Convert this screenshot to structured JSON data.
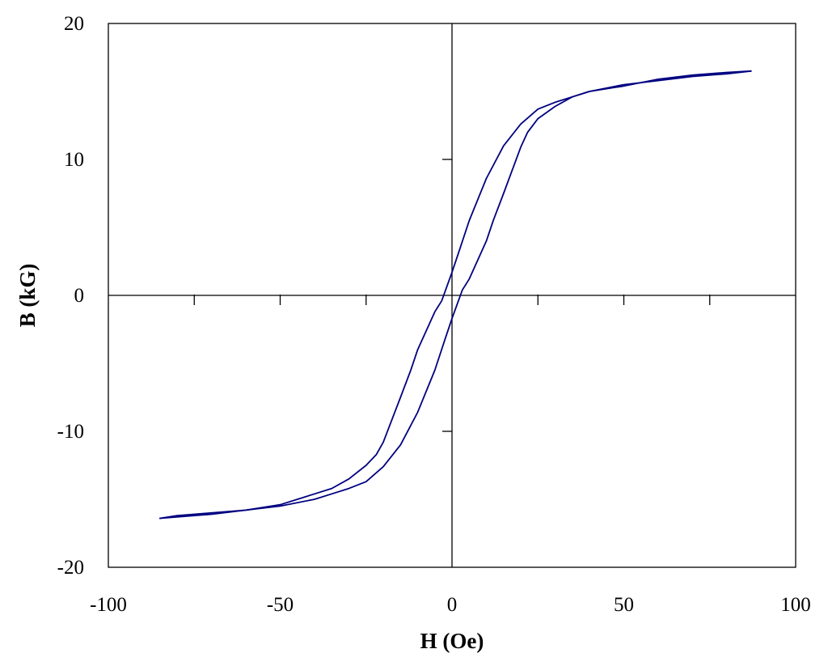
{
  "chart_data": {
    "type": "line",
    "title": "",
    "xlabel": "H (Oe)",
    "ylabel": "B (kG)",
    "xlim": [
      -100,
      100
    ],
    "ylim": [
      -20,
      20
    ],
    "x_ticks": [
      "-100",
      "-50",
      "0",
      "50",
      "100"
    ],
    "y_ticks": [
      "20",
      "10",
      "0",
      "-10",
      "-20"
    ],
    "grid": false,
    "legend": "none",
    "line_color": "#000080",
    "series": [
      {
        "x": [
          -85,
          -70,
          -60,
          -50,
          -45,
          -40,
          -35,
          -30,
          -25,
          -22,
          -20,
          -15,
          -12,
          -10,
          -5,
          -3,
          0,
          2,
          5,
          10,
          15,
          20,
          25,
          30,
          35,
          40,
          50,
          60,
          70,
          80,
          87
        ],
        "y": [
          -16.4,
          -16.1,
          -15.8,
          -15.4,
          -15.0,
          -14.6,
          -14.2,
          -13.5,
          -12.5,
          -11.7,
          -10.8,
          -7.5,
          -5.5,
          -4.0,
          -1.2,
          -0.4,
          1.7,
          3.2,
          5.5,
          8.6,
          11.0,
          12.6,
          13.7,
          14.2,
          14.6,
          15.0,
          15.5,
          15.8,
          16.1,
          16.3,
          16.5
        ]
      },
      {
        "x": [
          87,
          80,
          70,
          60,
          50,
          40,
          35,
          30,
          25,
          22,
          20,
          15,
          12,
          10,
          5,
          3,
          0,
          -2,
          -5,
          -10,
          -15,
          -20,
          -25,
          -30,
          -35,
          -40,
          -50,
          -60,
          -70,
          -80,
          -85
        ],
        "y": [
          16.5,
          16.4,
          16.2,
          15.9,
          15.4,
          15.0,
          14.6,
          13.9,
          13.0,
          12.0,
          10.9,
          7.5,
          5.5,
          4.0,
          1.2,
          0.4,
          -1.7,
          -3.2,
          -5.5,
          -8.6,
          -11.0,
          -12.6,
          -13.7,
          -14.2,
          -14.6,
          -15.0,
          -15.5,
          -15.8,
          -16.0,
          -16.2,
          -16.4
        ]
      }
    ]
  }
}
